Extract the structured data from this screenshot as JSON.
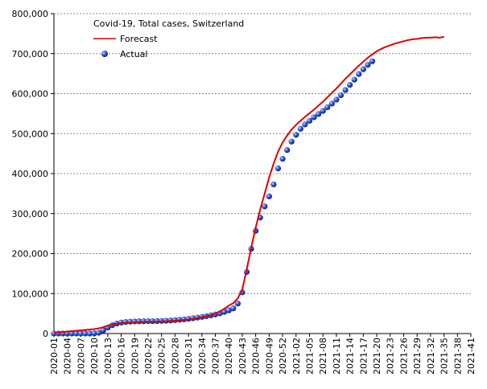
{
  "chart_data": {
    "type": "line",
    "legend_title": "Covid-19, Total cases, Switzerland",
    "categories": [
      "2020-01",
      null,
      null,
      "2020-04",
      null,
      null,
      "2020-07",
      null,
      null,
      "2020-10",
      null,
      null,
      "2020-13",
      null,
      null,
      "2020-16",
      null,
      null,
      "2020-19",
      null,
      null,
      "2020-22",
      null,
      null,
      "2020-25",
      null,
      null,
      "2020-28",
      null,
      null,
      "2020-31",
      null,
      null,
      "2020-34",
      null,
      null,
      "2020-37",
      null,
      null,
      "2020-40",
      null,
      null,
      "2020-43",
      null,
      null,
      "2020-46",
      null,
      null,
      "2020-49",
      null,
      null,
      "2020-52",
      null,
      null,
      "2021-02",
      null,
      null,
      "2021-05",
      null,
      null,
      "2021-08",
      null,
      null,
      "2021-11",
      null,
      null,
      "2021-14",
      null,
      null,
      "2021-17",
      null,
      null,
      "2021-20",
      null,
      null,
      "2021-23",
      null,
      null,
      "2021-26",
      null,
      null,
      "2021-29",
      null,
      null,
      "2021-32",
      null,
      null,
      "2021-35",
      null,
      null,
      "2021-38",
      null,
      null,
      "2021-41"
    ],
    "series": [
      {
        "name": "Forecast",
        "color": "#e00000",
        "style": "line",
        "values": [
          2000,
          3000,
          4000,
          5000,
          6000,
          7000,
          8000,
          9000,
          10000,
          11000,
          13000,
          16000,
          20000,
          23000,
          25000,
          26500,
          27500,
          28000,
          28500,
          29000,
          29300,
          29600,
          29900,
          30200,
          30600,
          31000,
          31600,
          32300,
          33200,
          34200,
          35400,
          37000,
          39000,
          41500,
          44000,
          46000,
          50000,
          55000,
          62000,
          70000,
          76000,
          88000,
          110000,
          160000,
          215000,
          265000,
          310000,
          350000,
          390000,
          425000,
          455000,
          478000,
          495000,
          510000,
          522000,
          532000,
          542000,
          551000,
          560000,
          570000,
          580000,
          591000,
          602000,
          613000,
          625000,
          637000,
          648000,
          659000,
          670000,
          680000,
          690000,
          698000,
          706000,
          712000,
          717000,
          721000,
          725000,
          728000,
          731000,
          734000,
          736000,
          737000,
          739000,
          740000,
          740000,
          741000,
          740000,
          742000,
          null,
          null,
          null,
          null,
          null,
          null
        ]
      },
      {
        "name": "Actual",
        "color": "#2a4fd6",
        "style": "markers",
        "values": [
          0,
          0,
          0,
          0,
          0,
          0,
          0,
          0,
          0,
          500,
          2000,
          8000,
          15000,
          21000,
          25000,
          27500,
          29000,
          29800,
          30300,
          30600,
          30800,
          30900,
          31000,
          31200,
          31500,
          32000,
          32700,
          33500,
          34500,
          35600,
          36800,
          38200,
          39800,
          41600,
          43500,
          45500,
          47800,
          50500,
          54000,
          58000,
          63000,
          75000,
          103000,
          154000,
          212000,
          257000,
          290000,
          318000,
          343000,
          373000,
          413000,
          437000,
          459000,
          480000,
          497000,
          512000,
          523000,
          532000,
          541000,
          549000,
          557000,
          566000,
          575000,
          585000,
          596000,
          609000,
          622000,
          635000,
          649000,
          661000,
          672000,
          681000,
          null,
          null,
          null,
          null,
          null,
          null,
          null,
          null,
          null,
          null,
          null,
          null,
          null,
          null,
          null,
          null,
          null,
          null,
          null,
          null,
          null,
          null
        ]
      }
    ],
    "ylim": [
      0,
      800000
    ],
    "yticks": [
      0,
      {
        "value": 100000,
        "label": "100,000"
      },
      {
        "value": 200000,
        "label": "200,000"
      },
      {
        "value": 300000,
        "label": "300,000"
      },
      {
        "value": 400000,
        "label": "400,000"
      },
      {
        "value": 500000,
        "label": "500,000"
      },
      {
        "value": 600000,
        "label": "600,000"
      },
      {
        "value": 700000,
        "label": "700,000"
      },
      {
        "value": 800000,
        "label": "800,000"
      }
    ],
    "grid": true
  }
}
